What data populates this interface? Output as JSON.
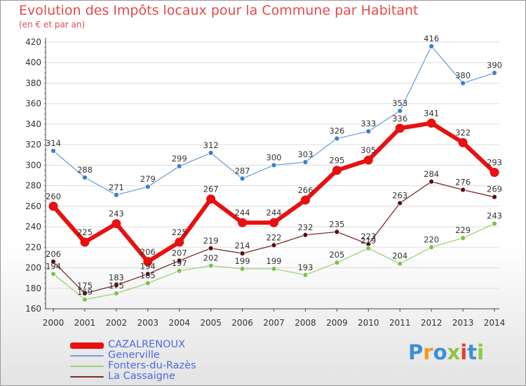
{
  "header": {
    "title": "Evolution des Impôts locaux pour la Commune par Habitant",
    "subtitle": "(en € et par an)"
  },
  "logo": {
    "letters": [
      {
        "ch": "P",
        "color": "#3a8fd8"
      },
      {
        "ch": "r",
        "color": "#f39a1e"
      },
      {
        "ch": "o",
        "color": "#3a8fd8"
      },
      {
        "ch": "x",
        "color": "#8dc63f"
      },
      {
        "ch": "i",
        "color": "#e8392b"
      },
      {
        "ch": "t",
        "color": "#3a8fd8"
      },
      {
        "ch": "i",
        "color": "#8dc63f"
      }
    ]
  },
  "chart_data": {
    "type": "line",
    "title": "Evolution des Impôts locaux pour la Commune par Habitant",
    "subtitle": "(en € et par an)",
    "xlabel": "",
    "ylabel": "",
    "ylim": [
      160,
      420
    ],
    "yticks": [
      160,
      180,
      200,
      220,
      240,
      260,
      280,
      300,
      320,
      340,
      360,
      380,
      400,
      420
    ],
    "grid": "horizontal",
    "legend_position": "bottom-left",
    "categories": [
      "2000",
      "2001",
      "2002",
      "2003",
      "2004",
      "2005",
      "2006",
      "2007",
      "2008",
      "2009",
      "2010",
      "2011",
      "2012",
      "2013",
      "2014"
    ],
    "series": [
      {
        "name": "La Cassaigne",
        "color": "#7b2a2a",
        "marker_color": "#5a1010",
        "width": 1.3,
        "marker_r": 3.5,
        "values": [
          206,
          175,
          183,
          194,
          207,
          219,
          214,
          222,
          232,
          235,
          223,
          263,
          284,
          276,
          269
        ],
        "labels": [
          "206",
          "175",
          "183",
          "194",
          "207",
          "219",
          "214",
          "222",
          "232",
          "235",
          "223",
          "263",
          "284",
          "276",
          "269"
        ]
      },
      {
        "name": "Fonters-du-Razès",
        "color": "#9ed07a",
        "marker_color": "#7cc24a",
        "width": 1.3,
        "marker_r": 3.5,
        "values": [
          194,
          169,
          175,
          185,
          197,
          202,
          199,
          199,
          193,
          205,
          219,
          204,
          220,
          229,
          243
        ],
        "labels": [
          "194",
          "169",
          "175",
          "185",
          "197",
          "202",
          "199",
          "199",
          "193",
          "205",
          "219",
          "204",
          "220",
          "229",
          "243"
        ]
      },
      {
        "name": "Generville",
        "color": "#6fa3d6",
        "marker_color": "#3a7fc8",
        "width": 1.3,
        "marker_r": 3.5,
        "values": [
          314,
          288,
          271,
          279,
          299,
          312,
          287,
          300,
          303,
          326,
          333,
          353,
          416,
          380,
          390
        ],
        "labels": [
          "314",
          "288",
          "271",
          "279",
          "299",
          "312",
          "287",
          "300",
          "303",
          "326",
          "333",
          "353",
          "416",
          "380",
          "390"
        ]
      },
      {
        "name": "CAZALRENOUX",
        "color": "#e81010",
        "marker_color": "#e81010",
        "width": 6,
        "marker_r": 6.5,
        "values": [
          260,
          225,
          243,
          206,
          225,
          267,
          244,
          244,
          266,
          295,
          305,
          336,
          341,
          322,
          293
        ],
        "labels": [
          "260",
          "225",
          "243",
          "206",
          "225",
          "267",
          "244",
          "244",
          "266",
          "295",
          "305",
          "336",
          "341",
          "322",
          "293"
        ]
      }
    ]
  },
  "legend": [
    {
      "name": "CAZALRENOUX",
      "color": "#e81010",
      "thickness": 9
    },
    {
      "name": "Generville",
      "color": "#6fa3d6",
      "thickness": 2
    },
    {
      "name": "Fonters-du-Razès",
      "color": "#9ed07a",
      "thickness": 2
    },
    {
      "name": "La Cassaigne",
      "color": "#7b2a2a",
      "thickness": 2
    }
  ]
}
